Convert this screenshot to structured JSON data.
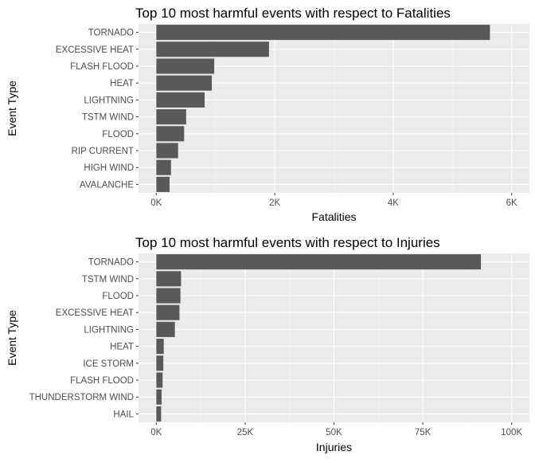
{
  "chart_data": [
    {
      "type": "bar",
      "orientation": "horizontal",
      "title": "Top 10 most harmful events with respect to Fatalities",
      "xlabel": "Fatalities",
      "ylabel": "Event Type",
      "categories": [
        "TORNADO",
        "EXCESSIVE HEAT",
        "FLASH FLOOD",
        "HEAT",
        "LIGHTNING",
        "TSTM WIND",
        "FLOOD",
        "RIP CURRENT",
        "HIGH WIND",
        "AVALANCHE"
      ],
      "values": [
        5633,
        1903,
        978,
        937,
        816,
        504,
        470,
        368,
        248,
        224
      ],
      "xlim": [
        0,
        6000
      ],
      "xticks": [
        0,
        2000,
        4000,
        6000
      ],
      "xtick_labels": [
        "0K",
        "2K",
        "4K",
        "6K"
      ],
      "grid": true,
      "bar_color": "#595959"
    },
    {
      "type": "bar",
      "orientation": "horizontal",
      "title": "Top 10 most harmful events with respect to Injuries",
      "xlabel": "Injuries",
      "ylabel": "Event Type",
      "categories": [
        "TORNADO",
        "TSTM WIND",
        "FLOOD",
        "EXCESSIVE HEAT",
        "LIGHTNING",
        "HEAT",
        "ICE STORM",
        "FLASH FLOOD",
        "THUNDERSTORM WIND",
        "HAIL"
      ],
      "values": [
        91346,
        6957,
        6789,
        6525,
        5230,
        2100,
        1975,
        1777,
        1488,
        1361
      ],
      "xlim": [
        0,
        100000
      ],
      "xticks": [
        0,
        25000,
        50000,
        75000,
        100000
      ],
      "xtick_labels": [
        "0K",
        "25K",
        "50K",
        "75K",
        "100K"
      ],
      "grid": true,
      "bar_color": "#595959"
    }
  ]
}
